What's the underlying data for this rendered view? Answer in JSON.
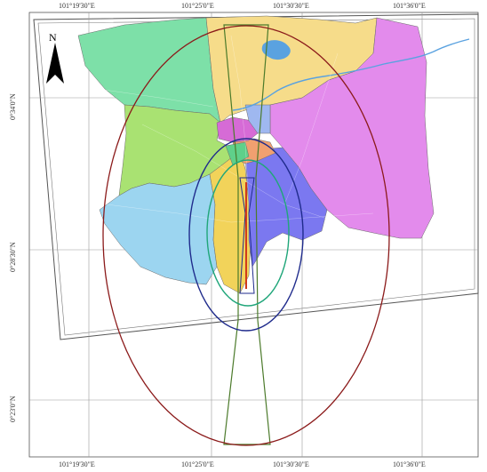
{
  "map": {
    "top_labels": [
      "101°19'30\"E",
      "101°25'0\"E",
      "101°30'30\"E",
      "101°36'0\"E"
    ],
    "bottom_labels": [
      "101°19'30\"E",
      "101°25'0\"E",
      "101°30'30\"E",
      "101°36'0\"E"
    ],
    "left_labels": [
      "0°34'0\"N",
      "0°28'30\"N",
      "0°23'0\"N"
    ],
    "north_label": "N",
    "colors": {
      "region_green": "#7de0a8",
      "region_yellow": "#f6dc8a",
      "region_pink": "#e38bec",
      "region_lightgreen": "#a9e272",
      "region_lightblue": "#9cd5f0",
      "region_blue": "#7b78f0",
      "region_magenta": "#d66bd6",
      "region_orange": "#f0a070",
      "region_gold": "#f2d35a",
      "ellipse_outer": "#8b1a1a",
      "ellipse_mid": "#1f2b8c",
      "ellipse_inner": "#20a67a",
      "trapezoid": "#4b7a2a",
      "river": "#5aa2e0"
    }
  }
}
